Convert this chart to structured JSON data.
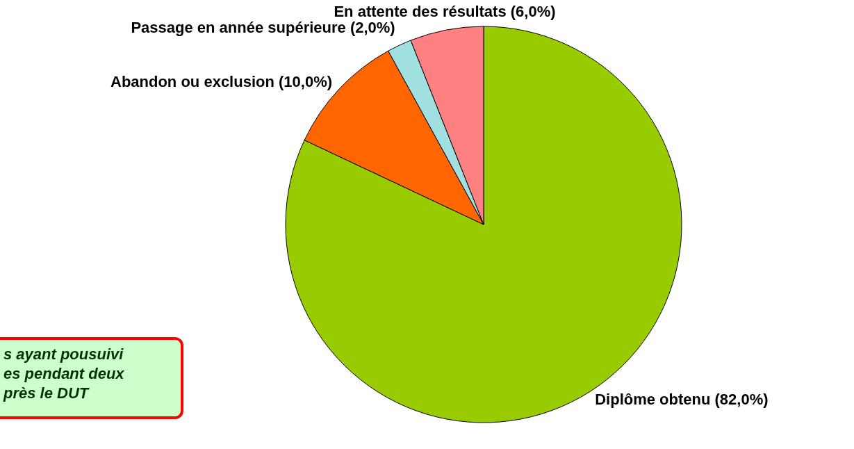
{
  "chart_data": {
    "type": "pie",
    "categories": [
      "Diplôme obtenu (82,0%)",
      "Abandon ou exclusion (10,0%)",
      "Passage en année supérieure (2,0%)",
      "En attente des résultats (6,0%)"
    ],
    "values": [
      82.0,
      10.0,
      2.0,
      6.0
    ],
    "colors": [
      "#99cc00",
      "#ff6600",
      "#a0e0e0",
      "#ff8080"
    ],
    "annotations": [
      "s ayant pousuivi\nes pendant deux\nprès le DUT"
    ]
  }
}
